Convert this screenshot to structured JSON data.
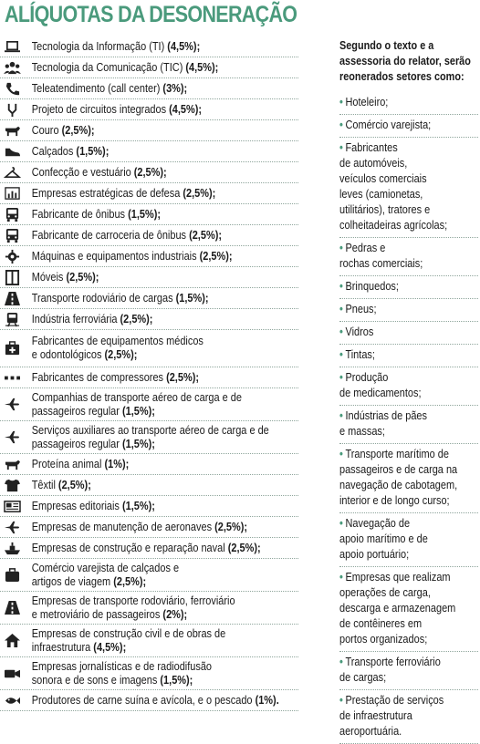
{
  "title": "ALÍQUOTAS DA DESONERAÇÃO",
  "left_rows": [
    {
      "icon": "laptop-icon",
      "text": "Tecnologia da Informação (TI)",
      "rate": " (4,5%);",
      "h": 23
    },
    {
      "icon": "people-icon",
      "text": "Tecnologia da Comunicação (TIC)",
      "rate": " (4,5%);",
      "h": 23
    },
    {
      "icon": "phone-icon",
      "text": "Teleatendimento (call center)",
      "rate": " (3%);",
      "h": 23
    },
    {
      "icon": "circuit-icon",
      "text": "Projeto de circuitos integrados",
      "rate": " (4,5%);",
      "h": 23
    },
    {
      "icon": "cow-icon",
      "text": "Couro",
      "rate": " (2,5%);",
      "h": 23
    },
    {
      "icon": "shoe-icon",
      "text": "Calçados",
      "rate": " (1,5%);",
      "h": 23
    },
    {
      "icon": "hanger-icon",
      "text": "Confecção e vestuário",
      "rate": " (2,5%);",
      "h": 23
    },
    {
      "icon": "bar-chart-icon",
      "text": "Empresas estratégicas de defesa",
      "rate": " (2,5%);",
      "h": 23
    },
    {
      "icon": "bus-icon",
      "text": "Fabricante de ônibus",
      "rate": " (1,5%);",
      "h": 23
    },
    {
      "icon": "bus-icon",
      "text": "Fabricante de carroceria de ônibus",
      "rate": " (2,5%);",
      "h": 23
    },
    {
      "icon": "gear-icon",
      "text": "Máquinas e equipamentos industriais",
      "rate": " (2,5%);",
      "h": 23
    },
    {
      "icon": "cabinet-icon",
      "text": "Móveis",
      "rate": " (2,5%);",
      "h": 23
    },
    {
      "icon": "road-icon",
      "text": "Transporte rodoviário de cargas",
      "rate": " (1,5%);",
      "h": 23
    },
    {
      "icon": "train-icon",
      "text": "Indústria ferroviária",
      "rate": " (2,5%);",
      "h": 23
    },
    {
      "icon": "medical-kit-icon",
      "text": "Fabricantes de equipamentos médicos",
      "text2": "e odontológicos",
      "rate": " (2,5%);",
      "h": 41
    },
    {
      "icon": "compressor-icon",
      "text": "Fabricantes de compressores",
      "rate": " (2,5%);",
      "h": 23
    },
    {
      "icon": "airplane-icon",
      "text": "Companhias de transporte aéreo de carga e de",
      "text2": "passageiros regular",
      "rate": " (1,5%);",
      "h": 36
    },
    {
      "icon": "airplane-icon",
      "text": "Serviços auxiliares ao transporte aéreo de carga e de",
      "text2": "passageiros regular",
      "rate": " (1,5%);",
      "h": 36
    },
    {
      "icon": "cow-icon",
      "text": "Proteína animal",
      "rate": " (1%);",
      "h": 23
    },
    {
      "icon": "shirt-icon",
      "text": "Têxtil",
      "rate": " (2,5%);",
      "h": 23
    },
    {
      "icon": "newspaper-icon",
      "text": "Empresas editoriais",
      "rate": " (1,5%);",
      "h": 23
    },
    {
      "icon": "airplane-icon",
      "text": "Empresas de manutenção de aeronaves",
      "rate": " (2,5%);",
      "h": 23
    },
    {
      "icon": "ship-icon",
      "text": "Empresas de construção e reparação naval",
      "rate": " (2,5%);",
      "h": 23
    },
    {
      "icon": "bag-icon",
      "text": "Comércio varejista de calçados e",
      "text2": "artigos de viagem",
      "rate": " (2,5%);",
      "h": 36
    },
    {
      "icon": "road-icon",
      "text": "Empresas de transporte rodoviário, ferroviário",
      "text2": "e metroviário de passageiros",
      "rate": " (2%);",
      "h": 36
    },
    {
      "icon": "house-icon",
      "text": "Empresas de construção civil e de obras de",
      "text2": "infraestrutura",
      "rate": " (4,5%);",
      "h": 36
    },
    {
      "icon": "camera-icon",
      "text": "Empresas jornalísticas e de radiodifusão",
      "text2": "sonora e de sons e imagens",
      "rate": " (1,5%);",
      "h": 36
    },
    {
      "icon": "fish-icon",
      "text": "Produtores de carne suína e avícola, e o pescado",
      "rate": " (1%).",
      "h": 23
    }
  ],
  "right_header": [
    "Segundo o texto e a",
    "assessoria do relator, serão",
    "reonerados setores como:"
  ],
  "right_items": [
    [
      "Hoteleiro;"
    ],
    [
      "Comércio varejista;"
    ],
    [
      "Fabricantes",
      "de automóveis,",
      "veículos comerciais",
      "leves (camionetas,",
      "utilitários), tratores e",
      "colheitadeiras agrícolas;"
    ],
    [
      "Pedras e",
      "rochas comerciais;"
    ],
    [
      "Brinquedos;"
    ],
    [
      "Pneus;"
    ],
    [
      "Vidros"
    ],
    [
      "Tintas;"
    ],
    [
      "Produção",
      "de medicamentos;"
    ],
    [
      "Indústrias de pães",
      "e massas;"
    ],
    [
      "Transporte marítimo de",
      "passageiros e de carga na",
      "navegação de cabotagem,",
      "interior e de longo curso;"
    ],
    [
      "Navegação de",
      "apoio marítimo e de",
      "apoio portuário;"
    ],
    [
      "Empresas que realizam",
      "operações de carga,",
      "descarga e armazenagem",
      "de contêineres em",
      "portos organizados;"
    ],
    [
      "Transporte ferroviário",
      "de cargas;"
    ],
    [
      "Prestação de serviços",
      "de infraestrutura",
      "aeroportuária."
    ]
  ],
  "colors": {
    "accent": "#4a9a7c",
    "icon_bg": "#1d1d1b"
  }
}
